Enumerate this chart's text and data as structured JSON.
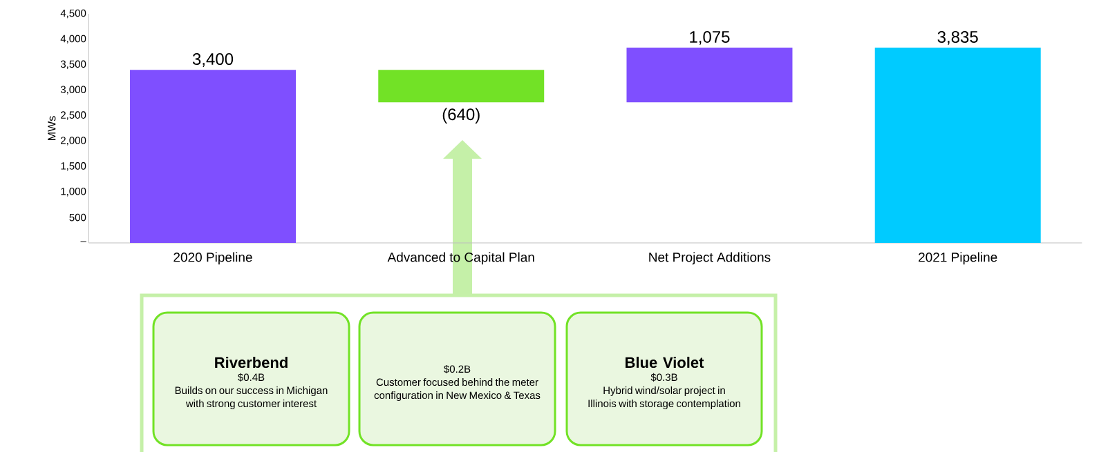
{
  "chart_data": {
    "type": "bar",
    "ylabel": "MWs",
    "categories": [
      "2020 Pipeline",
      "Advanced to Capital Plan",
      "Net Project Additions",
      "2021 Pipeline"
    ],
    "values": [
      3400,
      -640,
      1075,
      3835
    ],
    "base": [
      0,
      3400,
      2760,
      0
    ],
    "colors": [
      "#7f4fff",
      "#72e226",
      "#7f4fff",
      "#00cbff"
    ],
    "value_labels": [
      "3,400",
      "(640)",
      "1,075",
      "3,835"
    ],
    "ylim": [
      0,
      4500
    ],
    "yticks": [
      {
        "value": 0,
        "label": "–"
      },
      {
        "value": 500,
        "label": "500"
      },
      {
        "value": 1000,
        "label": "1,000"
      },
      {
        "value": 1500,
        "label": "1,500"
      },
      {
        "value": 2000,
        "label": "2,000"
      },
      {
        "value": 2500,
        "label": "2,500"
      },
      {
        "value": 3000,
        "label": "3,000"
      },
      {
        "value": 3500,
        "label": "3,500"
      },
      {
        "value": 4000,
        "label": "4,000"
      },
      {
        "value": 4500,
        "label": "4,500"
      }
    ],
    "grid": false,
    "annotations": [
      "Riverbend",
      "$0.4B",
      "Builds on our success in Michigan with strong customer interest",
      "$0.2B",
      "Customer focused behind the meter configuration in New Mexico & Texas",
      "Blue Violet",
      "$0.3B",
      "Hybrid wind/solar project in Illinois with storage contemplation"
    ]
  }
}
